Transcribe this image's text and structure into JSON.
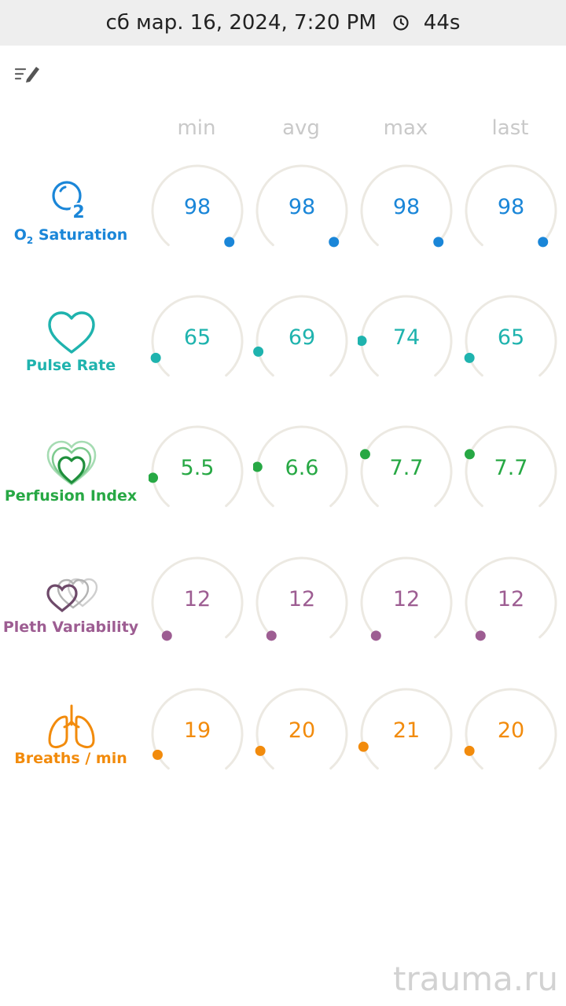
{
  "status_bar": {
    "datetime": "сб мар. 16, 2024, 7:20 PM",
    "duration": "44s"
  },
  "toolbar": {
    "edit_icon": "edit-list-icon"
  },
  "columns": [
    "min",
    "avg",
    "max",
    "last"
  ],
  "metrics": [
    {
      "label_main": "O",
      "label_sub": "2",
      "label_rest": " Saturation",
      "icon": "o2-icon",
      "color": "#1a86d8",
      "values": [
        "98",
        "98",
        "98",
        "98"
      ],
      "levels": [
        0.98,
        0.98,
        0.98,
        0.98
      ]
    },
    {
      "label": "Pulse Rate",
      "icon": "heart-icon",
      "color": "#1fb3ae",
      "values": [
        "65",
        "69",
        "74",
        "65"
      ],
      "levels": [
        0.1,
        0.13,
        0.18,
        0.1
      ]
    },
    {
      "label": "Perfusion Index",
      "icon": "perfusion-hearts-icon",
      "color": "#27a844",
      "values": [
        "5.5",
        "6.6",
        "7.7",
        "7.7"
      ],
      "levels": [
        0.15,
        0.2,
        0.26,
        0.26
      ]
    },
    {
      "label": "Pleth Variability",
      "icon": "pleth-hearts-icon",
      "color": "#9d5d92",
      "values": [
        "12",
        "12",
        "12",
        "12"
      ],
      "levels": [
        0.01,
        0.01,
        0.01,
        0.01
      ]
    },
    {
      "label": "Breaths / min",
      "icon": "lungs-icon",
      "color": "#f28b0c",
      "values": [
        "19",
        "20",
        "21",
        "20"
      ],
      "levels": [
        0.08,
        0.1,
        0.12,
        0.1
      ]
    }
  ],
  "watermark": "trauma.ru"
}
